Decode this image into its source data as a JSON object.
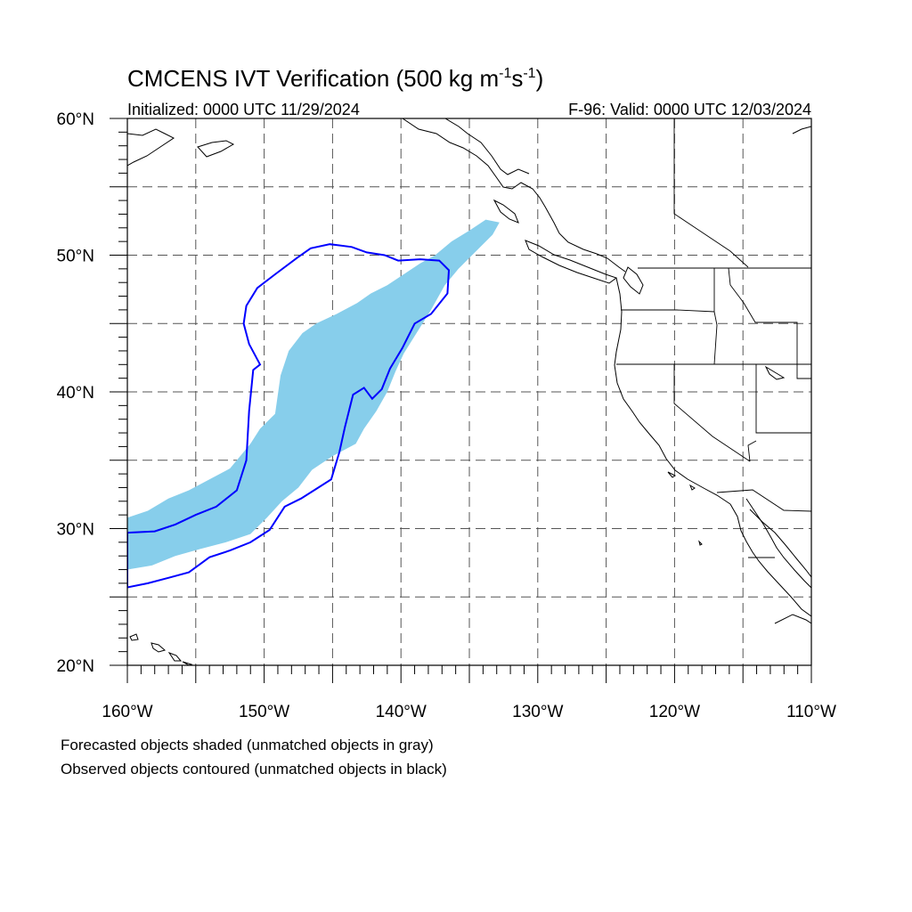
{
  "title": {
    "main": "CMCENS IVT Verification (500 kg m",
    "sup1": "-1",
    "mid": "s",
    "sup2": "-1",
    "end": ")"
  },
  "subtitle": {
    "left": "Initialized: 0000 UTC 11/29/2024",
    "right": "F-96: Valid: 0000 UTC 12/03/2024"
  },
  "map": {
    "lon_range": [
      -160,
      -110
    ],
    "lat_range": [
      20,
      60
    ],
    "grid_lon_step": 5,
    "grid_lat_step": 5,
    "lon_ticks": [
      {
        "lon": -160,
        "label": "160°W"
      },
      {
        "lon": -150,
        "label": "150°W"
      },
      {
        "lon": -140,
        "label": "140°W"
      },
      {
        "lon": -130,
        "label": "130°W"
      },
      {
        "lon": -120,
        "label": "120°W"
      },
      {
        "lon": -110,
        "label": "110°W"
      }
    ],
    "lat_ticks": [
      {
        "lat": 20,
        "label": "20°N"
      },
      {
        "lat": 30,
        "label": "30°N"
      },
      {
        "lat": 40,
        "label": "40°N"
      },
      {
        "lat": 50,
        "label": "50°N"
      },
      {
        "lat": 60,
        "label": "60°N"
      }
    ],
    "colors": {
      "forecast_fill": "#87ceeb",
      "observed_contour": "#0000ff",
      "coastline": "#000000",
      "grid": "#555555"
    }
  },
  "objects": {
    "forecast_shaded": [
      [
        -160,
        30.8
      ],
      [
        -158.5,
        31.3
      ],
      [
        -157,
        32.2
      ],
      [
        -155.5,
        32.8
      ],
      [
        -154,
        33.6
      ],
      [
        -152.5,
        34.4
      ],
      [
        -151,
        36.2
      ],
      [
        -150.3,
        37.3
      ],
      [
        -149.2,
        38.4
      ],
      [
        -148.8,
        41.2
      ],
      [
        -148.2,
        43.0
      ],
      [
        -147.2,
        44.3
      ],
      [
        -146.2,
        45.0
      ],
      [
        -144.7,
        45.7
      ],
      [
        -143.2,
        46.5
      ],
      [
        -142.2,
        47.2
      ],
      [
        -141,
        47.8
      ],
      [
        -139.8,
        48.6
      ],
      [
        -138.6,
        49.4
      ],
      [
        -137.5,
        50.0
      ],
      [
        -136.3,
        51.0
      ],
      [
        -135,
        51.8
      ],
      [
        -133.8,
        52.6
      ],
      [
        -132.8,
        52.4
      ],
      [
        -133.3,
        51.5
      ],
      [
        -134.5,
        50.3
      ],
      [
        -135.8,
        49.0
      ],
      [
        -136.8,
        47.8
      ],
      [
        -137.8,
        46.0
      ],
      [
        -138.8,
        44.4
      ],
      [
        -139.8,
        42.8
      ],
      [
        -140.4,
        41.5
      ],
      [
        -141,
        40.0
      ],
      [
        -141.8,
        38.6
      ],
      [
        -142.7,
        37.3
      ],
      [
        -143.3,
        36.2
      ],
      [
        -145,
        35.3
      ],
      [
        -146.5,
        34.3
      ],
      [
        -147.5,
        33.0
      ],
      [
        -148.7,
        32.0
      ],
      [
        -149.8,
        30.8
      ],
      [
        -151,
        29.6
      ],
      [
        -152.8,
        29.0
      ],
      [
        -154.7,
        28.5
      ],
      [
        -156.5,
        28.0
      ],
      [
        -158.2,
        27.3
      ],
      [
        -160,
        27.0
      ]
    ],
    "observed_contour": [
      [
        -160,
        29.7
      ],
      [
        -158,
        29.8
      ],
      [
        -156.5,
        30.3
      ],
      [
        -155,
        31.0
      ],
      [
        -153.5,
        31.6
      ],
      [
        -152,
        32.8
      ],
      [
        -151.3,
        35.0
      ],
      [
        -151.1,
        38.6
      ],
      [
        -150.8,
        41.6
      ],
      [
        -150.3,
        42.0
      ],
      [
        -151.1,
        43.5
      ],
      [
        -151.5,
        45.0
      ],
      [
        -151.3,
        46.3
      ],
      [
        -150.5,
        47.6
      ],
      [
        -149.2,
        48.6
      ],
      [
        -147.6,
        49.8
      ],
      [
        -146.6,
        50.5
      ],
      [
        -145.2,
        50.8
      ],
      [
        -143.6,
        50.6
      ],
      [
        -142.5,
        50.2
      ],
      [
        -141.2,
        50.0
      ],
      [
        -140.2,
        49.6
      ],
      [
        -138.6,
        49.7
      ],
      [
        -137.2,
        49.6
      ],
      [
        -136.5,
        48.9
      ],
      [
        -136.6,
        47.2
      ],
      [
        -137.8,
        45.7
      ],
      [
        -139.0,
        45.0
      ],
      [
        -139.9,
        43.2
      ],
      [
        -140.8,
        41.7
      ],
      [
        -141.4,
        40.2
      ],
      [
        -142.1,
        39.5
      ],
      [
        -142.7,
        40.3
      ],
      [
        -143.5,
        39.8
      ],
      [
        -144.1,
        37.4
      ],
      [
        -144.5,
        35.6
      ],
      [
        -145.1,
        33.6
      ],
      [
        -146.2,
        32.9
      ],
      [
        -147.3,
        32.2
      ],
      [
        -148.5,
        31.6
      ],
      [
        -149.6,
        29.9
      ],
      [
        -151.0,
        29.0
      ],
      [
        -152.5,
        28.4
      ],
      [
        -154.0,
        27.9
      ],
      [
        -155.5,
        26.8
      ],
      [
        -157.0,
        26.4
      ],
      [
        -158.5,
        26.0
      ],
      [
        -160,
        25.7
      ]
    ]
  },
  "footer": {
    "line1": "Forecasted objects shaded (unmatched objects in gray)",
    "line2": "Observed objects contoured (unmatched objects in black)"
  }
}
